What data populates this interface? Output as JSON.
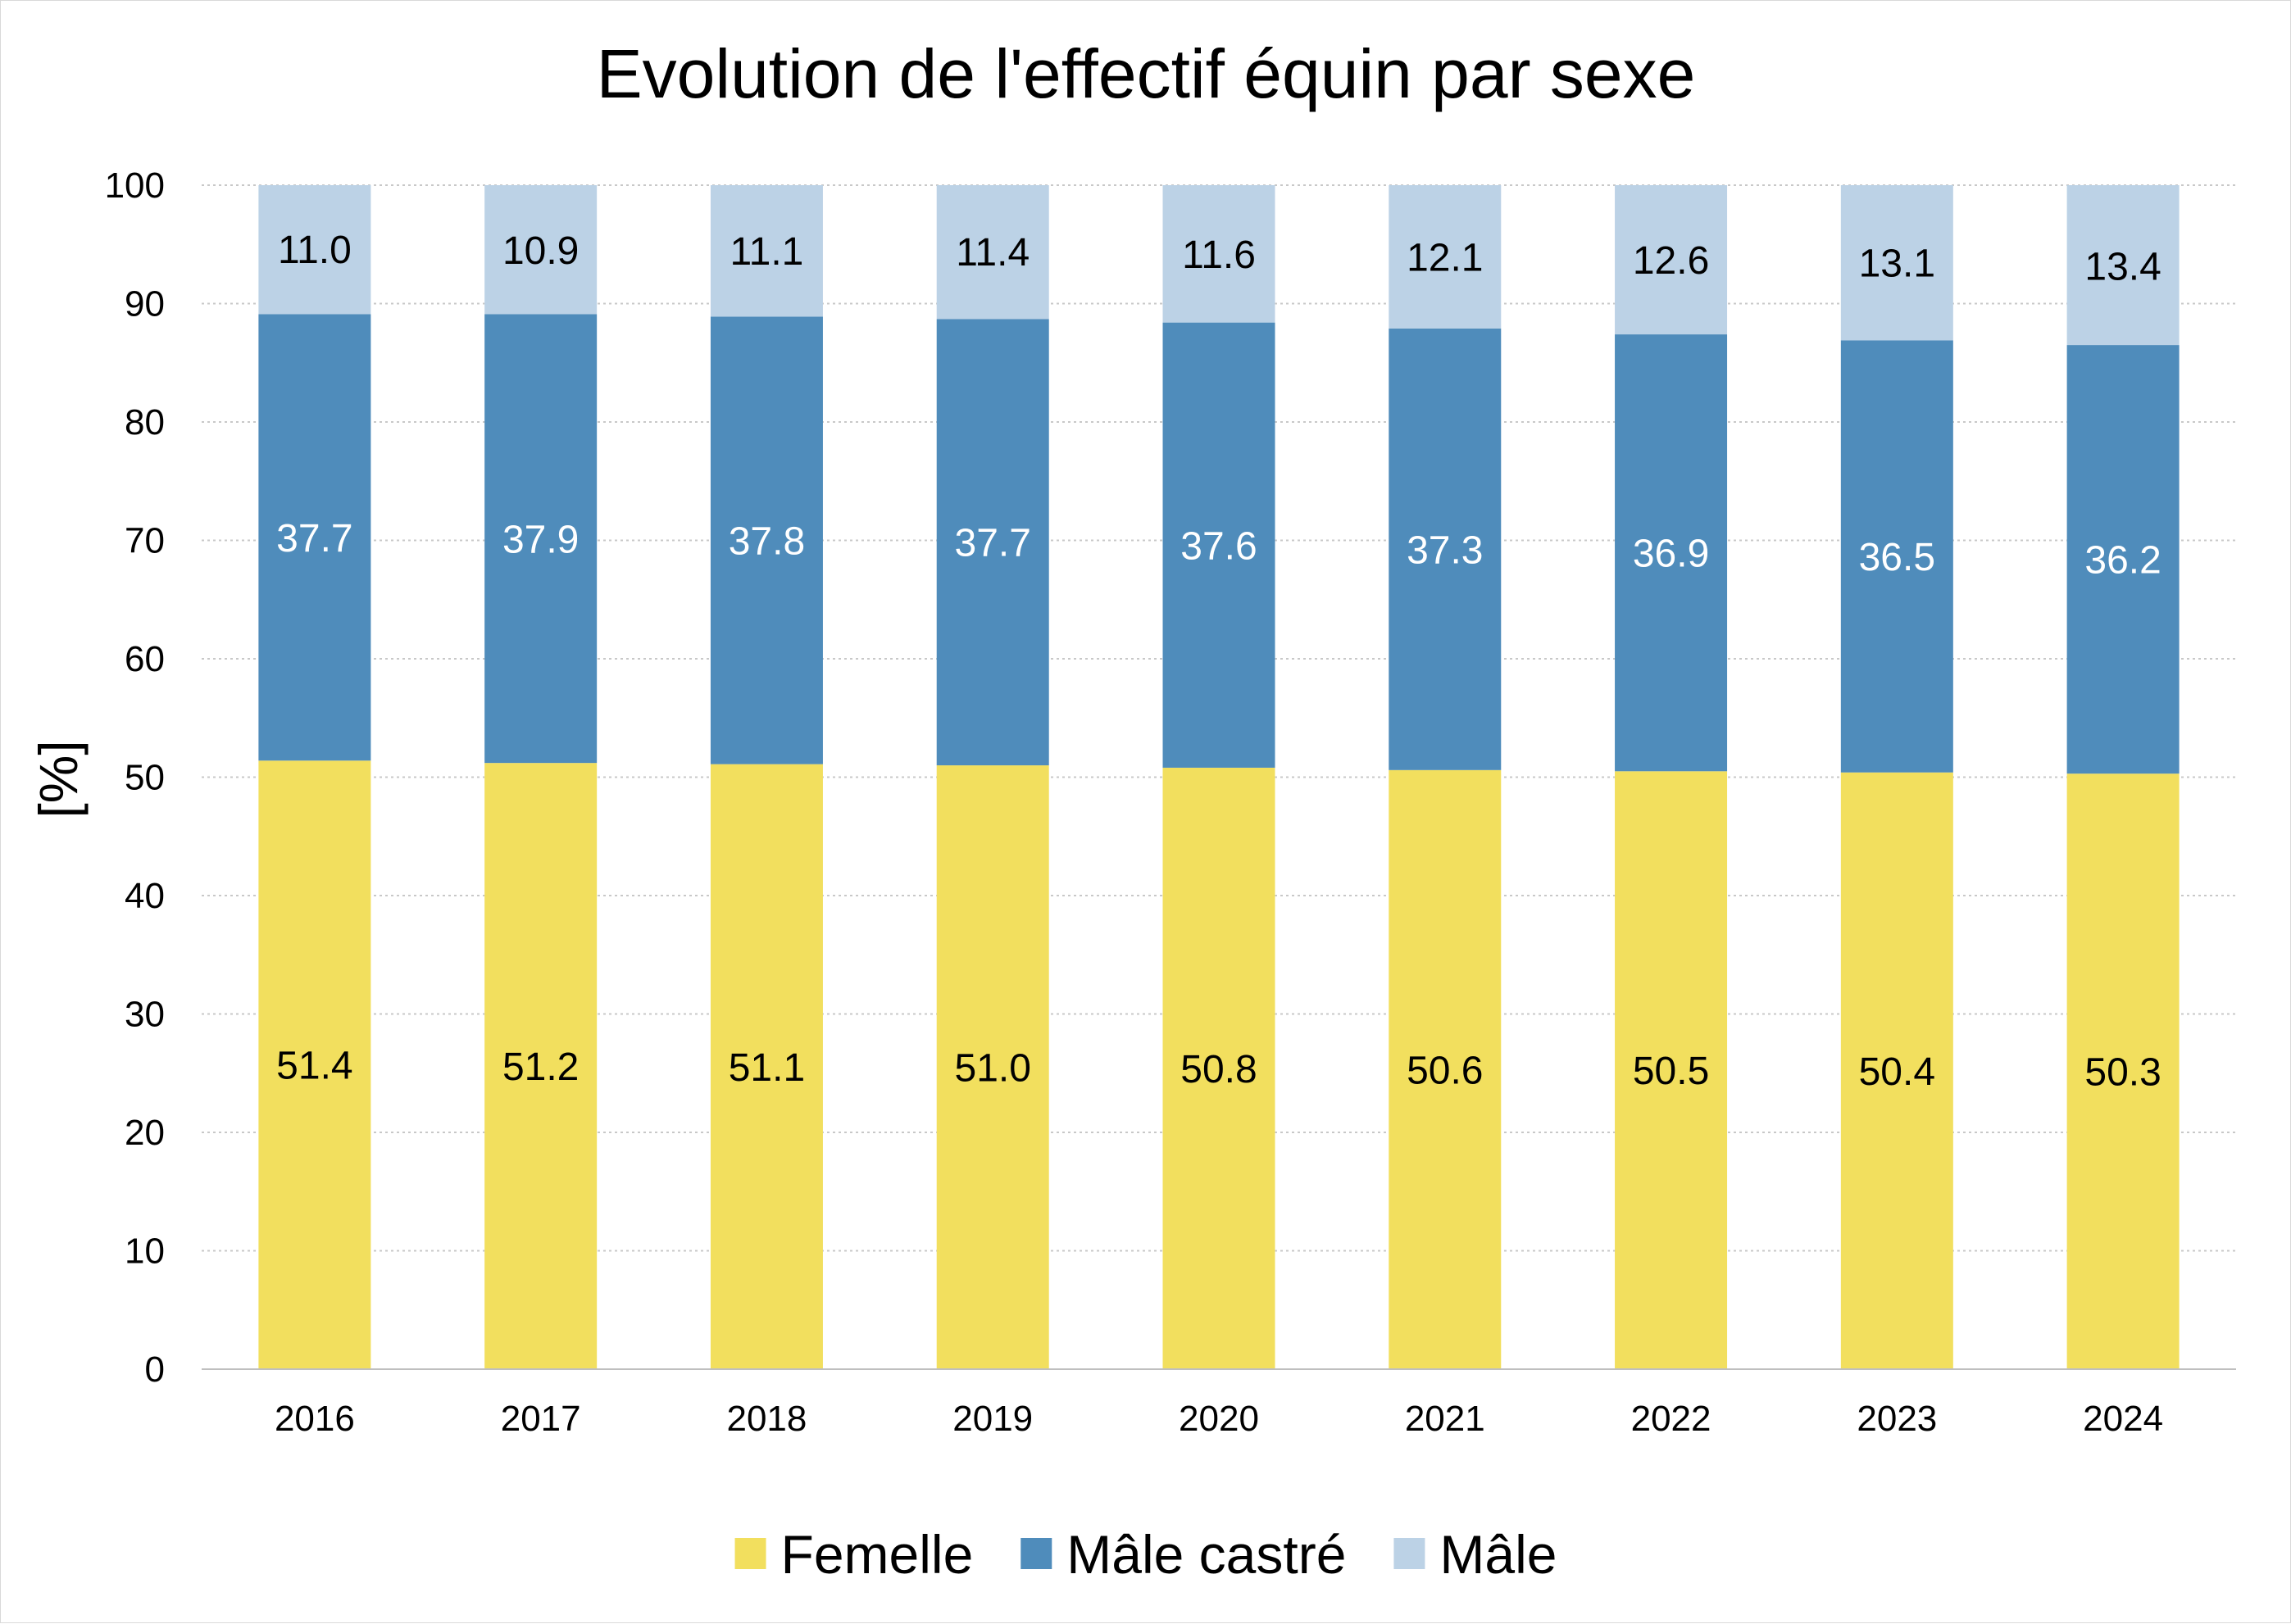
{
  "chart_data": {
    "type": "bar",
    "stacked": true,
    "title": "Evolution de l'effectif équin par sexe",
    "xlabel": "",
    "ylabel": "[%]",
    "ylim": [
      0,
      100
    ],
    "yticks": [
      0,
      10,
      20,
      30,
      40,
      50,
      60,
      70,
      80,
      90,
      100
    ],
    "grid": true,
    "legend_position": "bottom",
    "categories": [
      "2016",
      "2017",
      "2018",
      "2019",
      "2020",
      "2021",
      "2022",
      "2023",
      "2024"
    ],
    "series": [
      {
        "name": "Femelle",
        "color": "#F2DF5E",
        "label_color": "#000000",
        "values": [
          51.4,
          51.2,
          51.1,
          51.0,
          50.8,
          50.6,
          50.5,
          50.4,
          50.3
        ],
        "labels": [
          "51.4",
          "51.2",
          "51.1",
          "51.0",
          "50.8",
          "50.6",
          "50.5",
          "50.4",
          "50.3"
        ]
      },
      {
        "name": "Mâle castré",
        "color": "#4F8CBB",
        "label_color": "#FFFFFF",
        "values": [
          37.7,
          37.9,
          37.8,
          37.7,
          37.6,
          37.3,
          36.9,
          36.5,
          36.2
        ],
        "labels": [
          "37.7",
          "37.9",
          "37.8",
          "37.7",
          "37.6",
          "37.3",
          "36.9",
          "36.5",
          "36.2"
        ]
      },
      {
        "name": "Mâle",
        "color": "#BCD2E6",
        "label_color": "#000000",
        "values": [
          11.0,
          10.9,
          11.1,
          11.4,
          11.6,
          12.1,
          12.6,
          13.1,
          13.4
        ],
        "labels": [
          "11.0",
          "10.9",
          "11.1",
          "11.4",
          "11.6",
          "12.1",
          "12.6",
          "13.1",
          "13.4"
        ]
      }
    ]
  }
}
